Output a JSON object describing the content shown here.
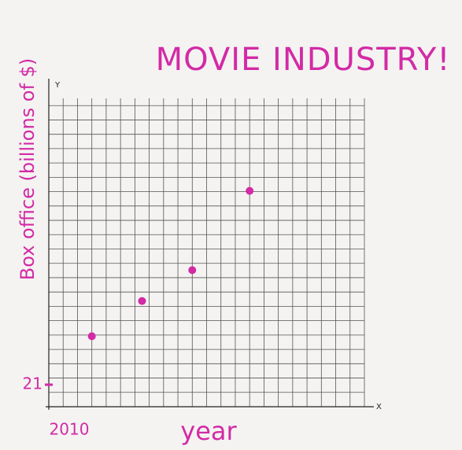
{
  "chart_data": {
    "type": "scatter",
    "title": "MOVIE INDUSTRY!",
    "x_label": "year",
    "y_label": "Box office (billions of $)",
    "axis_letters": {
      "x": "X",
      "y": "Y"
    },
    "series": [
      {
        "color": "#d32aa6",
        "x": [
          2013,
          2016.5,
          2020,
          2024
        ],
        "values": [
          24.3,
          26.7,
          28.8,
          34.2
        ]
      }
    ],
    "xlim": [
      2010,
      2032
    ],
    "xticks": [
      2010
    ],
    "ylim": [
      19.5,
      40.5
    ],
    "yticks": [
      21
    ]
  }
}
